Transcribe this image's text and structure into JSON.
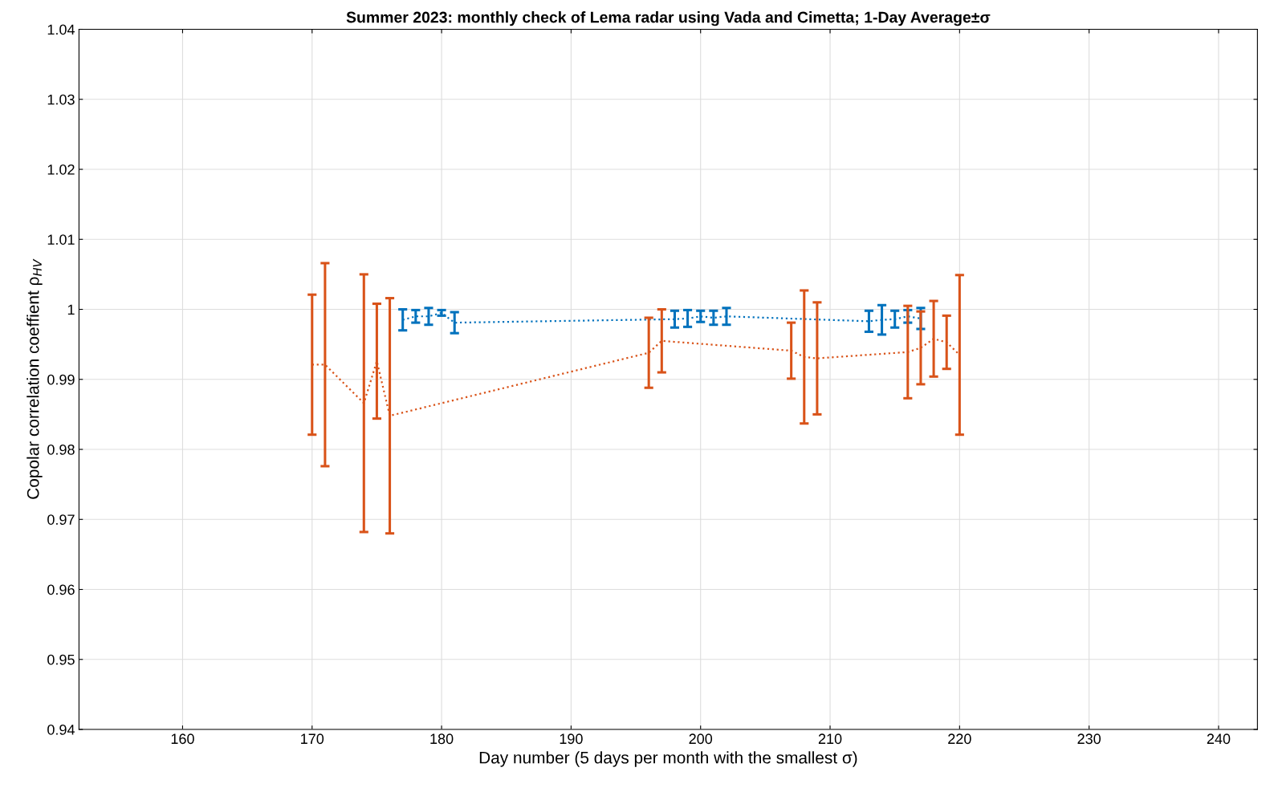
{
  "chart_data": {
    "type": "line",
    "title": "Summer 2023: monthly check of Lema radar using Vada and Cimetta; 1-Day Average±σ",
    "xlabel": "Day number (5 days per month with the smallest σ)",
    "ylabel": "Copolar correlation coeffient ρ$_{HV}$",
    "xlim": [
      152,
      243
    ],
    "xticks": [
      160,
      170,
      180,
      190,
      200,
      210,
      220,
      230,
      240
    ],
    "ylim": [
      0.94,
      1.04
    ],
    "yticks": [
      0.94,
      0.95,
      0.96,
      0.97,
      0.98,
      0.99,
      {
        "value": 1.0,
        "label": "1"
      },
      1.01,
      1.02,
      1.03,
      1.04
    ],
    "grid": true,
    "marker": "none",
    "line_style": "dotted",
    "series": [
      {
        "color": "#0072bd",
        "x": [
          177,
          178,
          179,
          180,
          181,
          198,
          199,
          200,
          201,
          202,
          213,
          214,
          215,
          216,
          217
        ],
        "values": [
          0.9985,
          0.999,
          0.999,
          0.9995,
          0.9981,
          0.9986,
          0.9987,
          0.999,
          0.9988,
          0.999,
          0.9983,
          0.9985,
          0.9986,
          0.999,
          0.9987
        ],
        "errors": [
          0.0015,
          0.0009,
          0.0012,
          0.0004,
          0.0015,
          0.0012,
          0.0012,
          0.0008,
          0.001,
          0.0012,
          0.0015,
          0.0021,
          0.0012,
          0.0009,
          0.0015
        ]
      },
      {
        "color": "#d95319",
        "x": [
          170,
          171,
          174,
          175,
          176,
          196,
          197,
          207,
          208,
          209,
          216,
          217,
          218,
          219,
          220
        ],
        "values": [
          0.9921,
          0.9921,
          0.9866,
          0.9926,
          0.9848,
          0.9938,
          0.9955,
          0.9941,
          0.9932,
          0.993,
          0.9939,
          0.9945,
          0.9958,
          0.9953,
          0.9935
        ],
        "errors": [
          0.01,
          0.0145,
          0.0184,
          0.0082,
          0.0168,
          0.005,
          0.0045,
          0.004,
          0.0095,
          0.008,
          0.0066,
          0.0052,
          0.0054,
          0.0038,
          0.0114
        ]
      }
    ]
  }
}
